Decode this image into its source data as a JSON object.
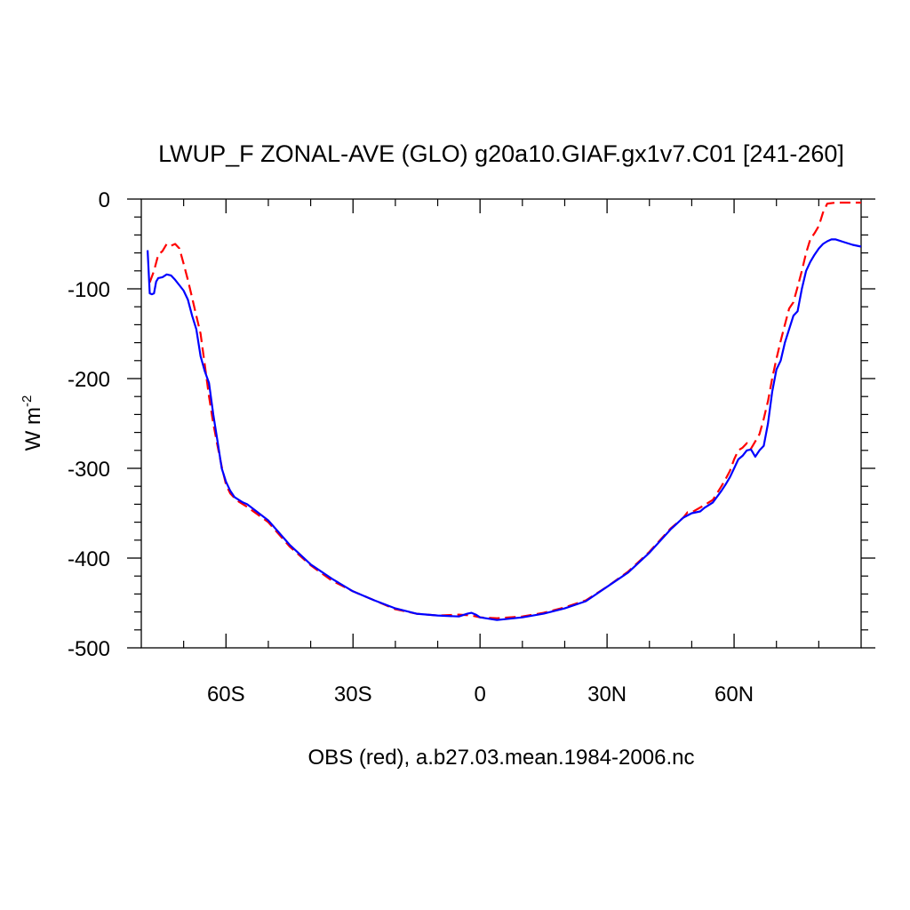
{
  "chart_data": {
    "type": "line",
    "title": "LWUP_F ZONAL-AVE (GLO) g20a10.GIAF.gx1v7.C01 [241-260]",
    "xlabel": "OBS (red), a.b27.03.mean.1984-2006.nc",
    "ylabel": {
      "base": "W m",
      "exponent": "-2"
    },
    "xlim": [
      -80,
      90
    ],
    "ylim": [
      -500,
      0
    ],
    "x_ticks": [
      {
        "value": -60,
        "label": "60S"
      },
      {
        "value": -30,
        "label": "30S"
      },
      {
        "value": 0,
        "label": "0"
      },
      {
        "value": 30,
        "label": "30N"
      },
      {
        "value": 60,
        "label": "60N"
      }
    ],
    "y_ticks": [
      {
        "value": 0,
        "label": "0"
      },
      {
        "value": -100,
        "label": "-100"
      },
      {
        "value": -200,
        "label": "-200"
      },
      {
        "value": -300,
        "label": "-300"
      },
      {
        "value": -400,
        "label": "-400"
      },
      {
        "value": -500,
        "label": "-500"
      }
    ],
    "grid": false,
    "series": [
      {
        "color": "#ff0000",
        "dash": "dashed",
        "x": [
          -78.0,
          -77.0,
          -76.0,
          -75.0,
          -74.0,
          -73.0,
          -72.0,
          -71.0,
          -70.0,
          -69.0,
          -68.0,
          -67.0,
          -66.0,
          -65.0,
          -64.0,
          -63.0,
          -62.0,
          -61.0,
          -60.0,
          -59.0,
          -58.0,
          -57.0,
          -56.0,
          -55.0,
          -50.0,
          -45.0,
          -40.0,
          -35.0,
          -30.0,
          -25.0,
          -20.0,
          -15.0,
          -10.0,
          -5.0,
          -2.0,
          0.0,
          4.0,
          10.0,
          15.0,
          20.0,
          25.0,
          30.0,
          35.0,
          40.0,
          45.0,
          48.0,
          49.0,
          50.0,
          53.0,
          55.0,
          57.0,
          58.0,
          59.0,
          60.0,
          61.0,
          62.0,
          63.0,
          64.0,
          65.0,
          66.0,
          67.0,
          68.0,
          69.0,
          70.0,
          71.0,
          72.0,
          73.0,
          74.0,
          75.0,
          76.0,
          77.0,
          78.0,
          79.0,
          80.0,
          81.0,
          82.0,
          84.0,
          87.0,
          90.0
        ],
        "y": [
          -93,
          -80,
          -62,
          -58,
          -50,
          -52,
          -50,
          -55,
          -72,
          -90,
          -110,
          -130,
          -150,
          -185,
          -220,
          -250,
          -275,
          -298,
          -318,
          -328,
          -333,
          -337,
          -340,
          -343,
          -360,
          -387,
          -408,
          -425,
          -437,
          -447,
          -457,
          -462,
          -464,
          -463,
          -464,
          -466,
          -467,
          -465,
          -461,
          -455,
          -447,
          -432,
          -415,
          -393,
          -367,
          -355,
          -349,
          -349,
          -341,
          -335,
          -320,
          -312,
          -303,
          -290,
          -280,
          -277,
          -272,
          -278,
          -270,
          -262,
          -245,
          -225,
          -200,
          -178,
          -158,
          -140,
          -122,
          -115,
          -98,
          -80,
          -60,
          -45,
          -38,
          -30,
          -15,
          -5,
          -4,
          -4,
          -4
        ]
      },
      {
        "color": "#0000ff",
        "dash": "solid",
        "x": [
          -78.5,
          -78.0,
          -77.5,
          -77.0,
          -76.5,
          -76.0,
          -75.0,
          -74.0,
          -73.0,
          -72.0,
          -71.0,
          -70.0,
          -69.0,
          -68.0,
          -67.0,
          -66.0,
          -65.0,
          -64.0,
          -63.0,
          -62.0,
          -61.0,
          -60.0,
          -59.0,
          -58.0,
          -57.0,
          -56.0,
          -55.0,
          -50.0,
          -45.0,
          -40.0,
          -35.0,
          -30.0,
          -25.0,
          -20.0,
          -15.0,
          -10.0,
          -5.0,
          -3.0,
          -2.0,
          -1.0,
          0.0,
          4.0,
          10.0,
          15.0,
          20.0,
          25.0,
          30.0,
          35.0,
          40.0,
          45.0,
          48.0,
          50.0,
          52.0,
          53.0,
          55.0,
          57.0,
          58.0,
          59.0,
          60.0,
          61.0,
          62.0,
          63.0,
          64.0,
          65.0,
          66.0,
          67.0,
          68.0,
          69.0,
          70.0,
          71.0,
          72.0,
          73.0,
          74.0,
          75.0,
          76.0,
          77.0,
          78.0,
          79.0,
          80.0,
          81.0,
          82.0,
          83.0,
          84.0,
          86.0,
          88.0,
          90.0
        ],
        "y": [
          -57,
          -105,
          -106,
          -105,
          -92,
          -88,
          -87,
          -84,
          -85,
          -90,
          -96,
          -102,
          -112,
          -130,
          -145,
          -175,
          -192,
          -205,
          -240,
          -270,
          -300,
          -315,
          -325,
          -332,
          -335,
          -338,
          -340,
          -358,
          -385,
          -407,
          -423,
          -437,
          -447,
          -456,
          -462,
          -464,
          -465,
          -462,
          -461,
          -463,
          -466,
          -469,
          -466,
          -462,
          -456,
          -448,
          -432,
          -416,
          -394,
          -368,
          -355,
          -350,
          -348,
          -344,
          -338,
          -325,
          -318,
          -310,
          -300,
          -290,
          -286,
          -280,
          -279,
          -287,
          -280,
          -275,
          -250,
          -215,
          -190,
          -180,
          -160,
          -145,
          -130,
          -125,
          -100,
          -80,
          -70,
          -62,
          -55,
          -50,
          -47,
          -45,
          -45,
          -48,
          -51,
          -53
        ]
      }
    ]
  }
}
